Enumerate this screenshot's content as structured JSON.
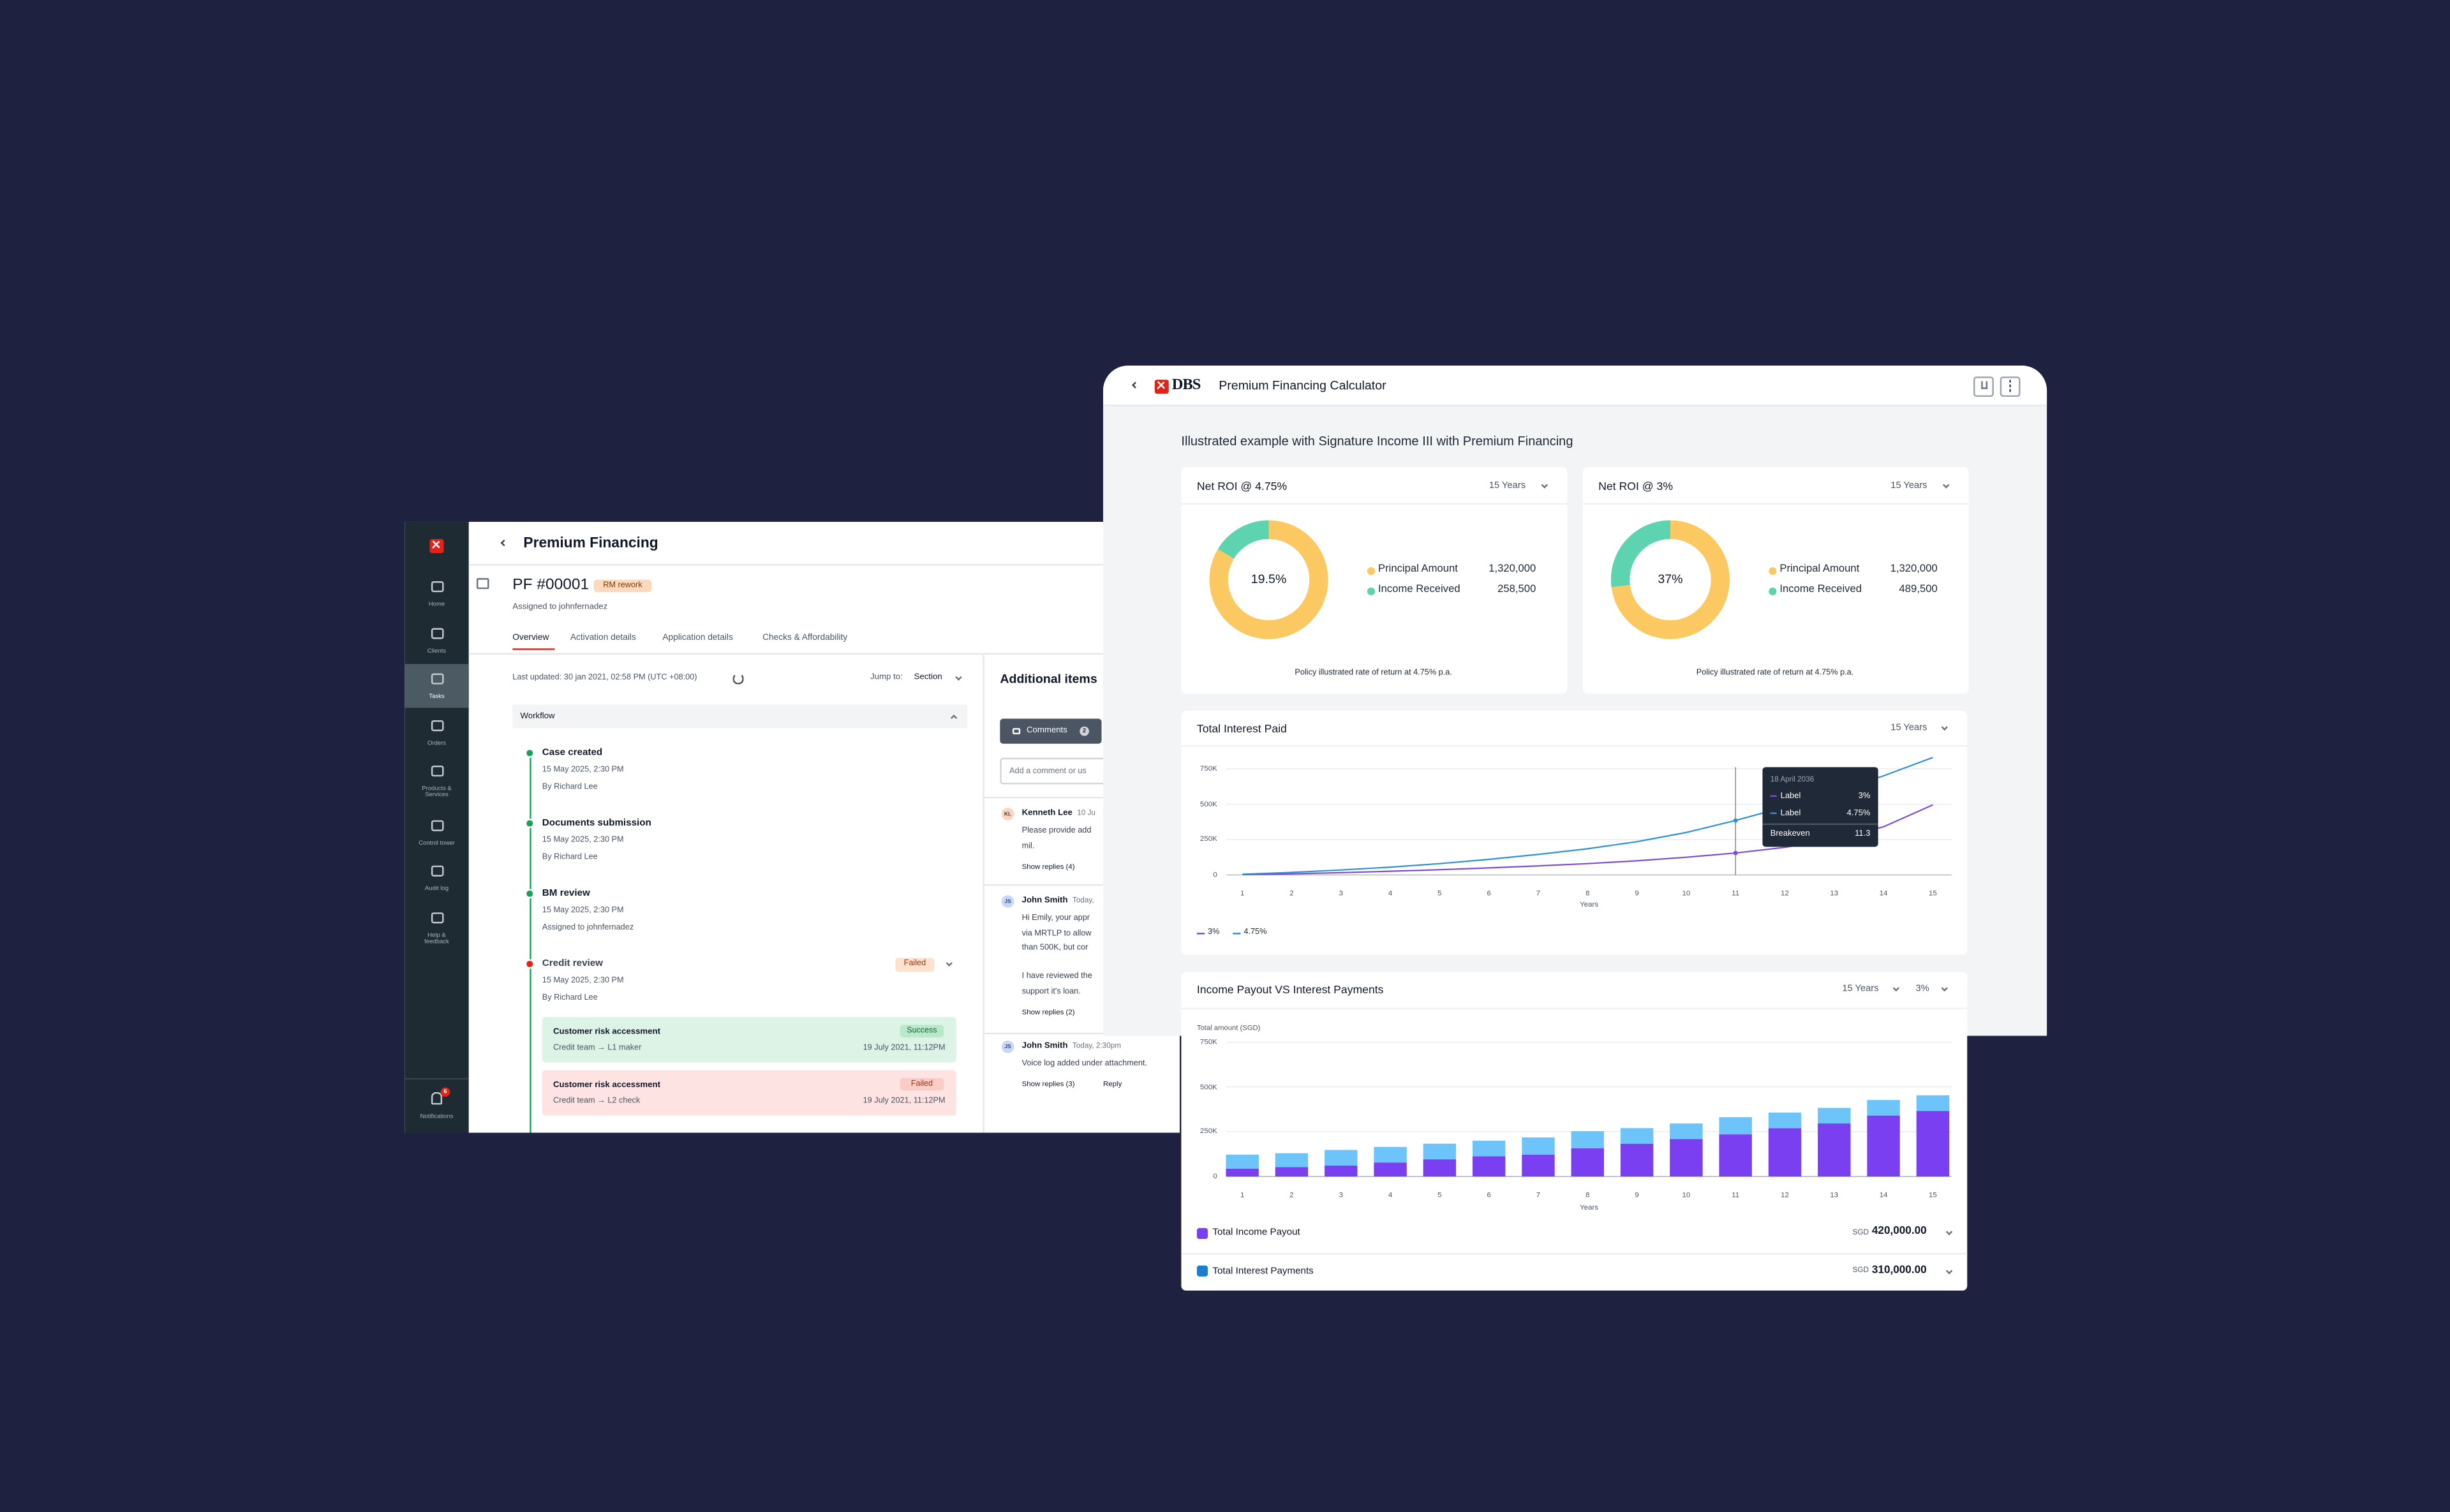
{
  "left_app": {
    "sidebar": {
      "nav": [
        {
          "lines": [
            "Home"
          ]
        },
        {
          "lines": [
            "Clients"
          ]
        },
        {
          "lines": [
            "Tasks"
          ],
          "active": true
        },
        {
          "lines": [
            "Orders"
          ]
        },
        {
          "lines": [
            "Products &",
            "Services"
          ]
        },
        {
          "lines": [
            "Control tower"
          ]
        },
        {
          "lines": [
            "Audit log"
          ]
        },
        {
          "lines": [
            "Help &",
            "feedback"
          ]
        }
      ],
      "notifications": {
        "label": "Notifications",
        "badge": 6
      }
    },
    "header": {
      "title": "Premium Financing"
    },
    "case": {
      "id": "PF #00001",
      "status": "RM rework",
      "assignee": "Assigned to johnfernadez"
    },
    "tabs": [
      "Overview",
      "Activation details",
      "Application details",
      "Checks & Affordability"
    ],
    "active_tab": 0,
    "overview": {
      "last_updated": "Last updated: 30 jan 2021, 02:58 PM (UTC +08:00)",
      "jump_to": "Jump to:",
      "section": "Section",
      "workflow": "Workflow",
      "steps": [
        {
          "title": "Case created",
          "date": "15 May 2025, 2:30 PM",
          "by": "By Richard Lee",
          "color": "#1e9e5a"
        },
        {
          "title": "Documents submission",
          "date": "15 May 2025, 2:30 PM",
          "by": "By Richard Lee",
          "color": "#1e9e5a"
        },
        {
          "title": "BM review",
          "date": "15 May 2025, 2:30 PM",
          "by": "Assigned to johnfernadez",
          "color": "#1e9e5a"
        },
        {
          "title": "Credit review",
          "date": "15 May 2025, 2:30 PM",
          "by": "By Richard Lee",
          "color": "#e2231a",
          "status": "Failed",
          "substeps": [
            {
              "title": "Customer risk accessment",
              "team": "Credit team → L1 maker",
              "status": "Success",
              "date": "19 July 2021, 11:12PM",
              "bg": "#dcf3e6",
              "badge_bg": "#b9e8cc",
              "badge_color": "#166534"
            },
            {
              "title": "Customer risk accessment",
              "team": "Credit team → L2 check",
              "status": "Failed",
              "date": "19 July 2021, 11:12PM",
              "bg": "#fde3e1",
              "badge_bg": "#f9cdc6",
              "badge_color": "#9a3412"
            }
          ]
        }
      ]
    },
    "additional": {
      "title": "Additional items",
      "comments_button": "Comments",
      "comments_count": 2,
      "placeholder": "Add a comment or us",
      "comments": [
        {
          "initials": "KL",
          "author": "Kenneth Lee",
          "time": "10 Ju",
          "paragraphs": [
            [
              "Please provide add",
              "mil."
            ]
          ],
          "replies": "Show replies (4)",
          "avatar": "#fcd5c0"
        },
        {
          "initials": "JS",
          "author": "John Smith",
          "time": "Today,",
          "paragraphs": [
            [
              "Hi Emily, your appr",
              "via MRTLP to allow",
              "than 500K, but cor"
            ],
            [
              "I have reviewed the",
              "support it's loan."
            ]
          ],
          "replies": "Show replies (2)",
          "avatar": "#c7d7fb"
        },
        {
          "initials": "JS",
          "author": "John Smith",
          "time": "Today, 2:30pm",
          "paragraphs": [
            [
              "Voice log added under attachment."
            ]
          ],
          "replies": "Show replies (3)",
          "reply": "Reply",
          "avatar": "#c7d7fb"
        }
      ]
    }
  },
  "calculator": {
    "brand": "DBS",
    "title": "Premium Financing Calculator",
    "subtitle": "Illustrated example with Signature Income III with Premium Financing",
    "roi_cards": [
      {
        "title": "Net ROI @ 4.75%",
        "period": "15 Years",
        "chart": {
          "type": "donut",
          "categories": [
            "Principal Amount",
            "Income Received"
          ],
          "values": [
            1320000,
            258500
          ],
          "value_labels": [
            "1,320,000",
            "258,500"
          ],
          "colors": [
            "#fcc862",
            "#5dd3b0"
          ],
          "center_label": "19.5%"
        },
        "note": "Policy illustrated rate of return at 4.75% p.a."
      },
      {
        "title": "Net ROI @ 3%",
        "period": "15 Years",
        "chart": {
          "type": "donut",
          "categories": [
            "Principal Amount",
            "Income Received"
          ],
          "values": [
            1320000,
            489500
          ],
          "value_labels": [
            "1,320,000",
            "489,500"
          ],
          "colors": [
            "#fcc862",
            "#5dd3b0"
          ],
          "center_label": "37%"
        },
        "note": "Policy illustrated rate of return at 4.75% p.a."
      }
    ],
    "interest_card": {
      "title": "Total Interest Paid",
      "period": "15 Years",
      "chart": {
        "type": "line",
        "xlabel": "Years",
        "x": [
          1,
          2,
          3,
          4,
          5,
          6,
          7,
          8,
          9,
          10,
          11,
          12,
          13,
          14,
          15
        ],
        "xlim": [
          0.68,
          15.38
        ],
        "ylim": [
          0,
          850000
        ],
        "yticks": [
          0,
          {
            "value": 250000,
            "label": "250K"
          },
          {
            "value": 500000,
            "label": "500K"
          },
          {
            "value": 750000,
            "label": "750K"
          }
        ],
        "grid": true,
        "series": [
          {
            "name": "3%",
            "color": "#7c4ddb",
            "values": [
              2000,
              8000,
              16000,
              26000,
              37000,
              50000,
              64000,
              80000,
              100000,
              125000,
              155000,
              195000,
              250000,
              340000,
              495000
            ]
          },
          {
            "name": "4.75%",
            "color": "#2f8fd8",
            "values": [
              5000,
              18000,
              35000,
              55000,
              80000,
              110000,
              145000,
              185000,
              235000,
              300000,
              385000,
              480000,
              590000,
              700000,
              830000
            ]
          }
        ],
        "tooltip": {
          "x": 11,
          "date": "18 April 2036",
          "rows": [
            {
              "label": "Label",
              "value": "3%",
              "color": "#7c4ddb"
            },
            {
              "label": "Label",
              "value": "4.75%",
              "color": "#2f8fd8"
            }
          ],
          "footer_label": "Breakeven",
          "footer_value": "11.3"
        }
      }
    },
    "payout_card": {
      "title": "Income Payout VS Interest Payments",
      "period": "15 Years",
      "rate": "3%",
      "chart": {
        "type": "bar",
        "stacked": true,
        "ylabel": "Total amount (SGD)",
        "xlabel": "Years",
        "x": [
          1,
          2,
          3,
          4,
          5,
          6,
          7,
          8,
          9,
          10,
          11,
          12,
          13,
          14,
          15
        ],
        "xlim": [
          0.68,
          15.38
        ],
        "ylim": [
          0,
          750000
        ],
        "yticks": [
          0,
          {
            "value": 250000,
            "label": "250K"
          },
          {
            "value": 500000,
            "label": "500K"
          },
          {
            "value": 750000,
            "label": "750K"
          }
        ],
        "grid": true,
        "series": [
          {
            "name": "Total Income Payout",
            "color": "#7b3ff2",
            "legend_color": "#7b3ff2",
            "values": [
              44000,
              52000,
              61000,
              78000,
              96000,
              113000,
              122000,
              157000,
              183000,
              209000,
              235000,
              270000,
              296000,
              340000,
              366000
            ]
          },
          {
            "name": "Total Interest Payments",
            "color": "#6cc4fa",
            "legend_color": "#1d7fc9",
            "values": [
              78000,
              78000,
              87000,
              87000,
              87000,
              87000,
              96000,
              96000,
              87000,
              87000,
              96000,
              87000,
              87000,
              87000,
              87000
            ]
          }
        ],
        "summary": [
          {
            "currency": "SGD",
            "amount": "420,000.00"
          },
          {
            "currency": "SGD",
            "amount": "310,000.00"
          }
        ]
      }
    }
  }
}
